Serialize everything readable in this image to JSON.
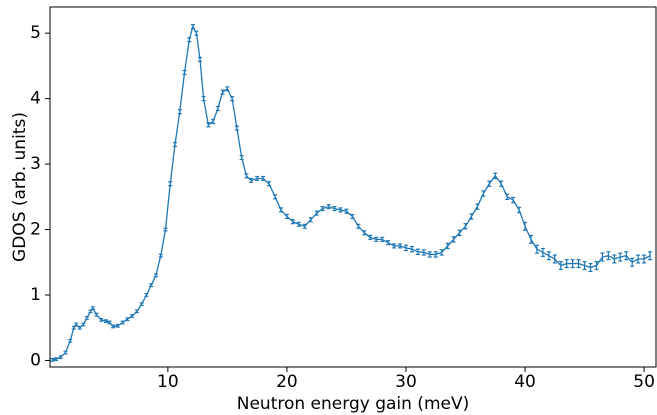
{
  "chart_data": {
    "type": "errorline",
    "xlabel": "Neutron energy gain (meV)",
    "ylabel": "GDOS (arb. units)",
    "xlim": [
      0.1,
      51
    ],
    "xticks": [
      10,
      20,
      30,
      40,
      50
    ],
    "ylim": [
      -0.1,
      5.4
    ],
    "yticks": [
      0,
      1,
      2,
      3,
      4,
      5
    ],
    "grid": false,
    "series": [
      {
        "color": "#1f77b4",
        "x": [
          0.3,
          0.6,
          1.0,
          1.4,
          1.8,
          2.1,
          2.3,
          2.6,
          2.9,
          3.2,
          3.5,
          3.7,
          4.0,
          4.4,
          4.8,
          5.1,
          5.4,
          5.8,
          6.2,
          6.6,
          7.0,
          7.4,
          7.8,
          8.2,
          8.6,
          9.0,
          9.4,
          9.8,
          10.2,
          10.6,
          11.0,
          11.4,
          11.8,
          12.1,
          12.4,
          12.7,
          13.0,
          13.4,
          13.8,
          14.2,
          14.6,
          15.0,
          15.4,
          15.8,
          16.2,
          16.6,
          17.0,
          17.5,
          18.0,
          18.5,
          19.0,
          19.5,
          20.0,
          20.5,
          21.0,
          21.5,
          22.0,
          22.5,
          23.0,
          23.5,
          24.0,
          24.5,
          25.0,
          25.5,
          26.0,
          26.5,
          27.0,
          27.5,
          28.0,
          28.5,
          29.0,
          29.5,
          30.0,
          30.5,
          31.0,
          31.5,
          32.0,
          32.5,
          33.0,
          33.5,
          34.0,
          34.5,
          35.0,
          35.5,
          36.0,
          36.5,
          37.0,
          37.5,
          38.0,
          38.5,
          39.0,
          39.5,
          40.0,
          40.5,
          41.0,
          41.5,
          42.0,
          42.5,
          43.0,
          43.5,
          44.0,
          44.5,
          45.0,
          45.5,
          46.0,
          46.5,
          47.0,
          47.5,
          48.0,
          48.5,
          49.0,
          49.5,
          50.0,
          50.5
        ],
        "values": [
          0.01,
          0.02,
          0.05,
          0.12,
          0.3,
          0.5,
          0.55,
          0.5,
          0.55,
          0.65,
          0.75,
          0.8,
          0.7,
          0.62,
          0.6,
          0.58,
          0.52,
          0.53,
          0.58,
          0.63,
          0.68,
          0.75,
          0.86,
          1.0,
          1.15,
          1.3,
          1.6,
          2.0,
          2.7,
          3.3,
          3.8,
          4.4,
          4.9,
          5.1,
          5.0,
          4.6,
          4.0,
          3.6,
          3.65,
          3.85,
          4.1,
          4.15,
          4.0,
          3.55,
          3.1,
          2.82,
          2.75,
          2.78,
          2.78,
          2.7,
          2.5,
          2.3,
          2.2,
          2.12,
          2.08,
          2.05,
          2.15,
          2.25,
          2.32,
          2.35,
          2.32,
          2.3,
          2.28,
          2.2,
          2.05,
          1.95,
          1.88,
          1.85,
          1.85,
          1.8,
          1.75,
          1.75,
          1.72,
          1.7,
          1.66,
          1.65,
          1.62,
          1.62,
          1.65,
          1.75,
          1.85,
          1.95,
          2.05,
          2.2,
          2.35,
          2.55,
          2.7,
          2.82,
          2.7,
          2.5,
          2.45,
          2.3,
          2.05,
          1.85,
          1.7,
          1.65,
          1.6,
          1.55,
          1.45,
          1.48,
          1.48,
          1.48,
          1.45,
          1.42,
          1.45,
          1.58,
          1.6,
          1.55,
          1.58,
          1.6,
          1.5,
          1.55,
          1.55,
          1.6
        ],
        "errors": [
          0.02,
          0.02,
          0.02,
          0.02,
          0.02,
          0.02,
          0.02,
          0.02,
          0.02,
          0.02,
          0.02,
          0.02,
          0.02,
          0.02,
          0.02,
          0.02,
          0.02,
          0.02,
          0.02,
          0.02,
          0.02,
          0.02,
          0.02,
          0.02,
          0.02,
          0.02,
          0.02,
          0.02,
          0.03,
          0.03,
          0.03,
          0.03,
          0.03,
          0.03,
          0.03,
          0.03,
          0.03,
          0.03,
          0.03,
          0.03,
          0.03,
          0.03,
          0.03,
          0.03,
          0.03,
          0.03,
          0.03,
          0.03,
          0.03,
          0.03,
          0.03,
          0.03,
          0.03,
          0.03,
          0.03,
          0.03,
          0.03,
          0.03,
          0.03,
          0.03,
          0.03,
          0.03,
          0.03,
          0.03,
          0.03,
          0.03,
          0.03,
          0.03,
          0.03,
          0.03,
          0.03,
          0.03,
          0.04,
          0.04,
          0.04,
          0.04,
          0.04,
          0.04,
          0.04,
          0.04,
          0.04,
          0.04,
          0.04,
          0.04,
          0.04,
          0.04,
          0.04,
          0.04,
          0.04,
          0.04,
          0.04,
          0.04,
          0.06,
          0.06,
          0.06,
          0.06,
          0.06,
          0.06,
          0.06,
          0.06,
          0.06,
          0.06,
          0.06,
          0.06,
          0.06,
          0.06,
          0.06,
          0.06,
          0.06,
          0.06,
          0.06,
          0.06,
          0.06,
          0.06
        ]
      }
    ]
  }
}
